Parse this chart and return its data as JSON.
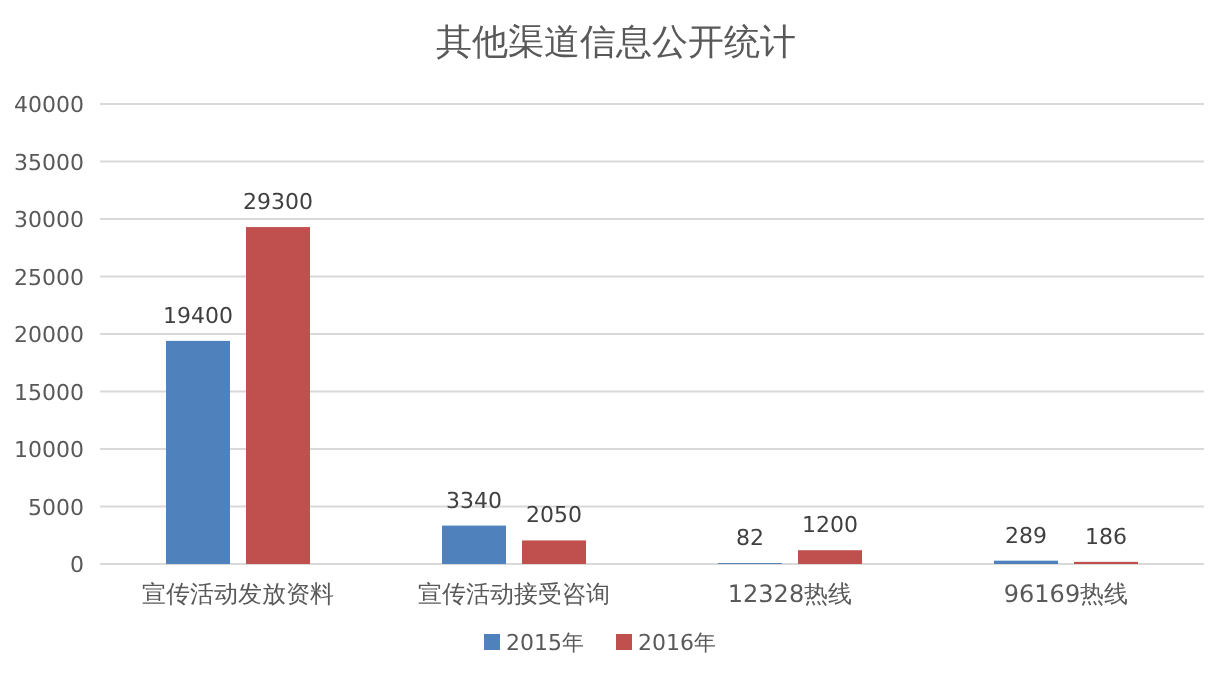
{
  "chart_data": {
    "type": "bar",
    "title": "其他渠道信息公开统计",
    "categories": [
      "宣传活动发放资料",
      "宣传活动接受咨询",
      "12328热线",
      "96169热线"
    ],
    "series": [
      {
        "name": "2015年",
        "color": "#4f81bd",
        "values": [
          19400,
          3340,
          82,
          289
        ]
      },
      {
        "name": "2016年",
        "color": "#c0504d",
        "values": [
          29300,
          2050,
          1200,
          186
        ]
      }
    ],
    "ylim": [
      0,
      40000
    ],
    "yticks": [
      0,
      5000,
      10000,
      15000,
      20000,
      25000,
      30000,
      35000,
      40000
    ],
    "grid": "y",
    "legend": "bottom",
    "data_labels": true
  }
}
